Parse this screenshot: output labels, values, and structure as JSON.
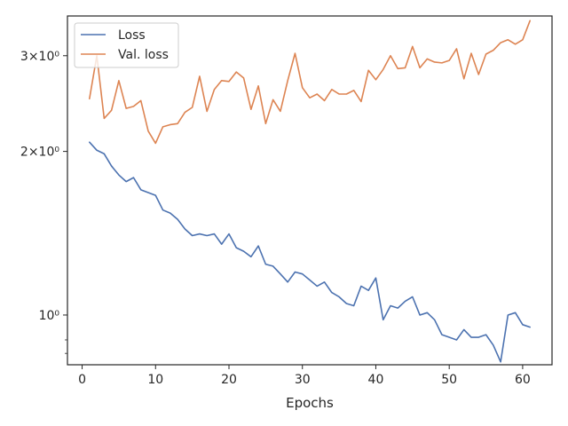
{
  "chart_data": {
    "type": "line",
    "xlabel": "Epochs",
    "ylabel": "",
    "xlim": [
      -2,
      64
    ],
    "ylim": [
      0.81,
      3.55
    ],
    "yscale": "log",
    "grid": false,
    "legend": "top-left",
    "x_ticks": [
      0,
      10,
      20,
      30,
      40,
      50,
      60
    ],
    "y_ticks": [
      {
        "value": 1.0,
        "label": "10⁰"
      },
      {
        "value": 2.0,
        "label": "2×10⁰"
      },
      {
        "value": 3.0,
        "label": "3×10⁰"
      }
    ],
    "y_minor_ticks": [
      0.9,
      0.85
    ],
    "x": [
      1,
      2,
      3,
      4,
      5,
      6,
      7,
      8,
      9,
      10,
      11,
      12,
      13,
      14,
      15,
      16,
      17,
      18,
      19,
      20,
      21,
      22,
      23,
      24,
      25,
      26,
      27,
      28,
      29,
      30,
      31,
      32,
      33,
      34,
      35,
      36,
      37,
      38,
      39,
      40,
      41,
      42,
      43,
      44,
      45,
      46,
      47,
      48,
      49,
      50,
      51,
      52,
      53,
      54,
      55,
      56,
      57,
      58,
      59,
      60,
      61
    ],
    "series": [
      {
        "name": "Loss",
        "color": "#4c72b0",
        "values": [
          2.08,
          2.01,
          1.98,
          1.88,
          1.81,
          1.76,
          1.79,
          1.7,
          1.68,
          1.66,
          1.56,
          1.54,
          1.5,
          1.44,
          1.4,
          1.41,
          1.4,
          1.41,
          1.35,
          1.41,
          1.33,
          1.31,
          1.28,
          1.34,
          1.24,
          1.23,
          1.19,
          1.15,
          1.2,
          1.19,
          1.16,
          1.13,
          1.15,
          1.1,
          1.08,
          1.05,
          1.04,
          1.13,
          1.11,
          1.17,
          0.98,
          1.04,
          1.03,
          1.06,
          1.08,
          1.0,
          1.01,
          0.98,
          0.92,
          0.91,
          0.9,
          0.94,
          0.91,
          0.91,
          0.92,
          0.88,
          0.82,
          1.0,
          1.01,
          0.96,
          0.95
        ]
      },
      {
        "name": "Val. loss",
        "color": "#dd8452",
        "values": [
          2.5,
          3.0,
          2.3,
          2.38,
          2.7,
          2.4,
          2.42,
          2.48,
          2.18,
          2.07,
          2.22,
          2.24,
          2.25,
          2.36,
          2.41,
          2.75,
          2.37,
          2.6,
          2.7,
          2.69,
          2.8,
          2.73,
          2.39,
          2.64,
          2.25,
          2.49,
          2.37,
          2.7,
          3.03,
          2.62,
          2.51,
          2.55,
          2.48,
          2.6,
          2.55,
          2.55,
          2.59,
          2.47,
          2.82,
          2.71,
          2.83,
          3.0,
          2.84,
          2.85,
          3.12,
          2.85,
          2.96,
          2.92,
          2.91,
          2.94,
          3.09,
          2.72,
          3.03,
          2.77,
          3.02,
          3.07,
          3.17,
          3.21,
          3.15,
          3.21,
          3.48
        ]
      }
    ]
  }
}
